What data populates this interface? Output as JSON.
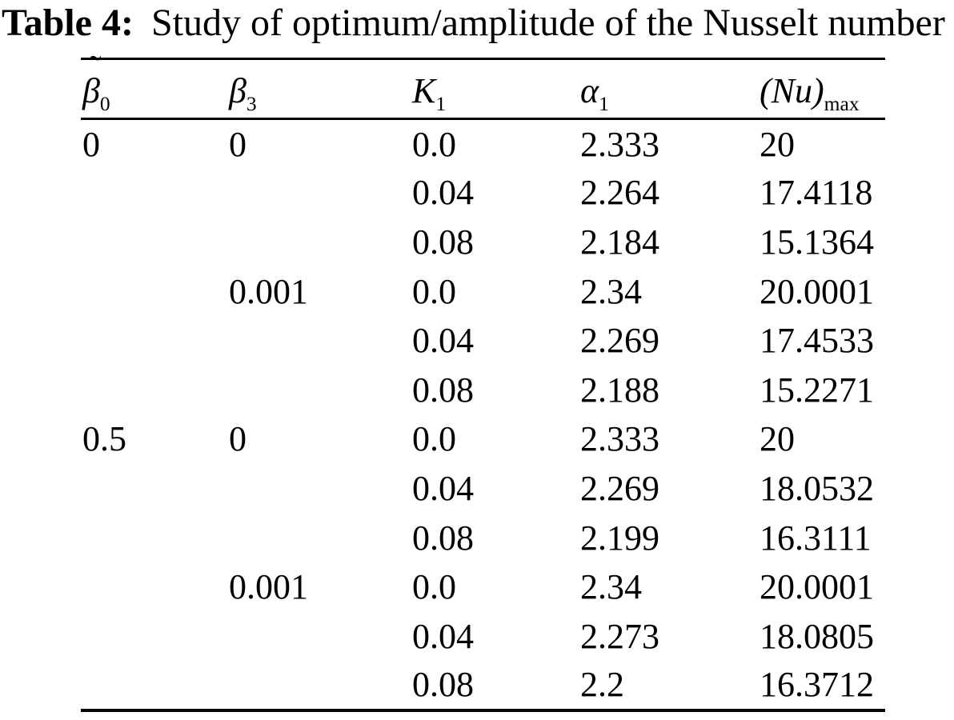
{
  "page": {
    "background_color": "#ffffff",
    "text_color": "#000000"
  },
  "caption": {
    "label": "Table 4:",
    "text": "Study of optimum/amplitude of the Nusselt number"
  },
  "table": {
    "columns": [
      {
        "base": "β",
        "tilde": "˜",
        "sub": "0"
      },
      {
        "base": "β",
        "sub": "3"
      },
      {
        "base": "K",
        "sub": "1"
      },
      {
        "base": "α",
        "sub": "1"
      },
      {
        "base": "(Nu)",
        "sub": "max"
      }
    ],
    "rows": [
      [
        "0",
        "0",
        "0.0",
        "2.333",
        "20"
      ],
      [
        "",
        "",
        "0.04",
        "2.264",
        "17.4118"
      ],
      [
        "",
        "",
        "0.08",
        "2.184",
        "15.1364"
      ],
      [
        "",
        "0.001",
        "0.0",
        "2.34",
        "20.0001"
      ],
      [
        "",
        "",
        "0.04",
        "2.269",
        "17.4533"
      ],
      [
        "",
        "",
        "0.08",
        "2.188",
        "15.2271"
      ],
      [
        "0.5",
        "0",
        "0.0",
        "2.333",
        "20"
      ],
      [
        "",
        "",
        "0.04",
        "2.269",
        "18.0532"
      ],
      [
        "",
        "",
        "0.08",
        "2.199",
        "16.3111"
      ],
      [
        "",
        "0.001",
        "0.0",
        "2.34",
        "20.0001"
      ],
      [
        "",
        "",
        "0.04",
        "2.273",
        "18.0805"
      ],
      [
        "",
        "",
        "0.08",
        "2.2",
        "16.3712"
      ]
    ]
  }
}
